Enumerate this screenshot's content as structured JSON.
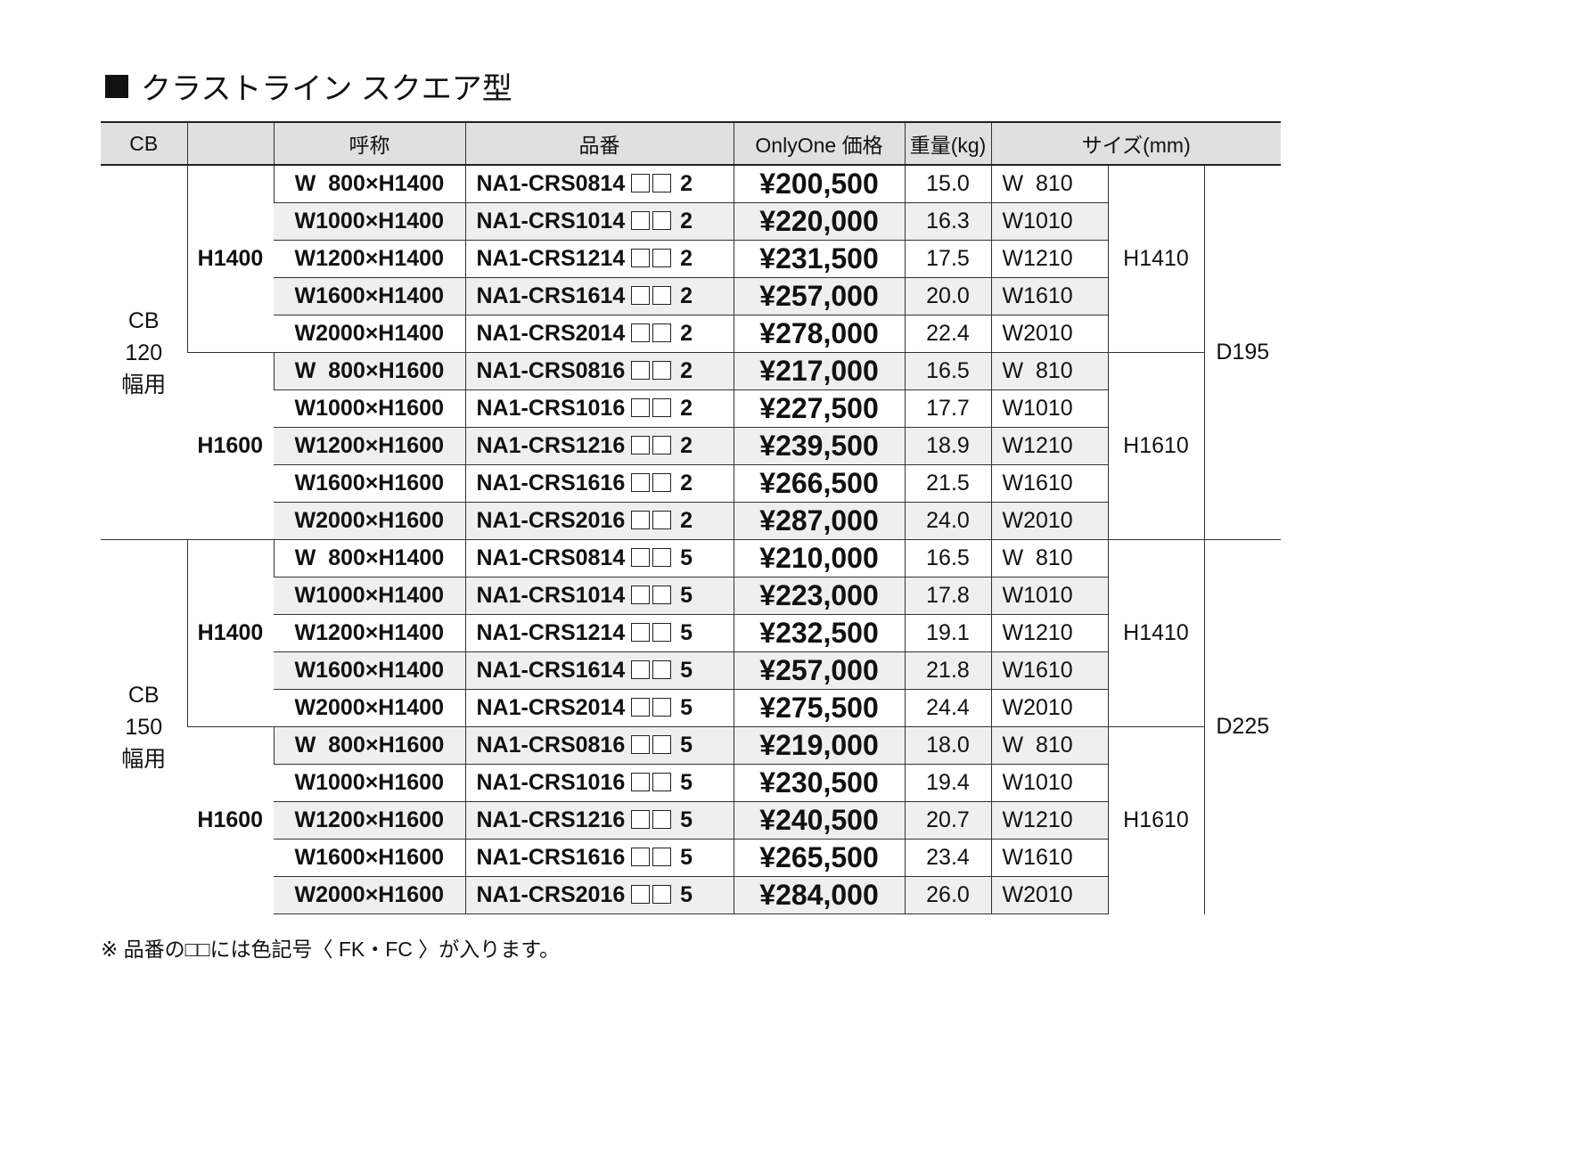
{
  "title": "クラストライン スクエア型",
  "headers": {
    "cb": "CB",
    "blank": "",
    "nominal": "呼称",
    "part": "品番",
    "price": "OnlyOne 価格",
    "weight": "重量(kg)",
    "size": "サイズ(mm)"
  },
  "groups": [
    {
      "cb": [
        "CB",
        "120",
        "幅用"
      ],
      "depth": "D195",
      "suffix": "2",
      "sub": [
        {
          "height": "H1400",
          "size_h": "H1410",
          "rows": [
            {
              "nominal": "W  800×H1400",
              "code": "NA1-CRS0814",
              "price": "¥200,500",
              "weight": "15.0",
              "w": "W  810"
            },
            {
              "nominal": "W1000×H1400",
              "code": "NA1-CRS1014",
              "price": "¥220,000",
              "weight": "16.3",
              "w": "W1010"
            },
            {
              "nominal": "W1200×H1400",
              "code": "NA1-CRS1214",
              "price": "¥231,500",
              "weight": "17.5",
              "w": "W1210"
            },
            {
              "nominal": "W1600×H1400",
              "code": "NA1-CRS1614",
              "price": "¥257,000",
              "weight": "20.0",
              "w": "W1610"
            },
            {
              "nominal": "W2000×H1400",
              "code": "NA1-CRS2014",
              "price": "¥278,000",
              "weight": "22.4",
              "w": "W2010"
            }
          ]
        },
        {
          "height": "H1600",
          "size_h": "H1610",
          "rows": [
            {
              "nominal": "W  800×H1600",
              "code": "NA1-CRS0816",
              "price": "¥217,000",
              "weight": "16.5",
              "w": "W  810"
            },
            {
              "nominal": "W1000×H1600",
              "code": "NA1-CRS1016",
              "price": "¥227,500",
              "weight": "17.7",
              "w": "W1010"
            },
            {
              "nominal": "W1200×H1600",
              "code": "NA1-CRS1216",
              "price": "¥239,500",
              "weight": "18.9",
              "w": "W1210"
            },
            {
              "nominal": "W1600×H1600",
              "code": "NA1-CRS1616",
              "price": "¥266,500",
              "weight": "21.5",
              "w": "W1610"
            },
            {
              "nominal": "W2000×H1600",
              "code": "NA1-CRS2016",
              "price": "¥287,000",
              "weight": "24.0",
              "w": "W2010"
            }
          ]
        }
      ]
    },
    {
      "cb": [
        "CB",
        "150",
        "幅用"
      ],
      "depth": "D225",
      "suffix": "5",
      "sub": [
        {
          "height": "H1400",
          "size_h": "H1410",
          "rows": [
            {
              "nominal": "W  800×H1400",
              "code": "NA1-CRS0814",
              "price": "¥210,000",
              "weight": "16.5",
              "w": "W  810"
            },
            {
              "nominal": "W1000×H1400",
              "code": "NA1-CRS1014",
              "price": "¥223,000",
              "weight": "17.8",
              "w": "W1010"
            },
            {
              "nominal": "W1200×H1400",
              "code": "NA1-CRS1214",
              "price": "¥232,500",
              "weight": "19.1",
              "w": "W1210"
            },
            {
              "nominal": "W1600×H1400",
              "code": "NA1-CRS1614",
              "price": "¥257,000",
              "weight": "21.8",
              "w": "W1610"
            },
            {
              "nominal": "W2000×H1400",
              "code": "NA1-CRS2014",
              "price": "¥275,500",
              "weight": "24.4",
              "w": "W2010"
            }
          ]
        },
        {
          "height": "H1600",
          "size_h": "H1610",
          "rows": [
            {
              "nominal": "W  800×H1600",
              "code": "NA1-CRS0816",
              "price": "¥219,000",
              "weight": "18.0",
              "w": "W  810"
            },
            {
              "nominal": "W1000×H1600",
              "code": "NA1-CRS1016",
              "price": "¥230,500",
              "weight": "19.4",
              "w": "W1010"
            },
            {
              "nominal": "W1200×H1600",
              "code": "NA1-CRS1216",
              "price": "¥240,500",
              "weight": "20.7",
              "w": "W1210"
            },
            {
              "nominal": "W1600×H1600",
              "code": "NA1-CRS1616",
              "price": "¥265,500",
              "weight": "23.4",
              "w": "W1610"
            },
            {
              "nominal": "W2000×H1600",
              "code": "NA1-CRS2016",
              "price": "¥284,000",
              "weight": "26.0",
              "w": "W2010"
            }
          ]
        }
      ]
    }
  ],
  "note": "※ 品番の□□には色記号〈 FK・FC 〉が入ります。",
  "colors": {
    "header_bg": "#e0e0e0",
    "stripe_bg": "#efefef"
  }
}
